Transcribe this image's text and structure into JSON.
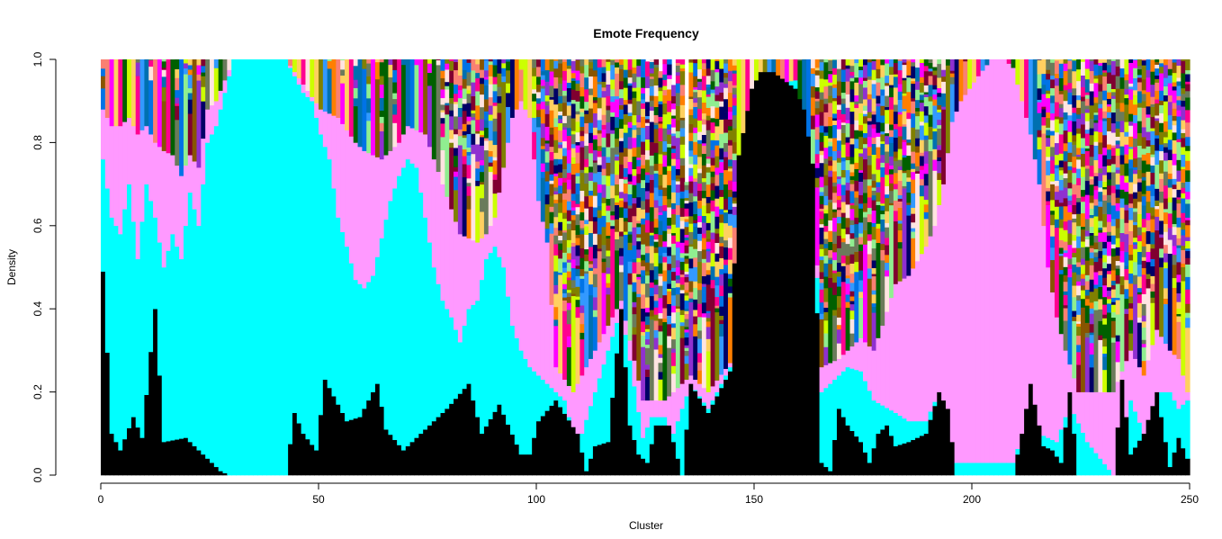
{
  "chart_data": {
    "type": "bar",
    "stacked": true,
    "title": "Emote Frequency",
    "xlabel": "Cluster",
    "ylabel": "Density",
    "xlim": [
      0,
      250
    ],
    "ylim": [
      0.0,
      1.0
    ],
    "x_ticks": [
      "0",
      "50",
      "100",
      "150",
      "200",
      "250"
    ],
    "y_ticks": [
      "0.0",
      "0.2",
      "0.4",
      "0.6",
      "0.8",
      "1.0"
    ],
    "grid": false,
    "legend": "none",
    "num_bars": 250,
    "series": [
      {
        "color": "#000000",
        "points": [
          [
            1,
            0.49
          ],
          [
            3,
            0.1
          ],
          [
            5,
            0.06
          ],
          [
            8,
            0.14
          ],
          [
            10,
            0.09
          ],
          [
            13,
            0.4
          ],
          [
            15,
            0.08
          ],
          [
            20,
            0.09
          ],
          [
            24,
            0.05
          ],
          [
            28,
            0.01
          ],
          [
            30,
            0.0
          ],
          [
            43,
            0.0
          ],
          [
            45,
            0.15
          ],
          [
            47,
            0.1
          ],
          [
            50,
            0.06
          ],
          [
            52,
            0.23
          ],
          [
            57,
            0.13
          ],
          [
            60,
            0.14
          ],
          [
            64,
            0.22
          ],
          [
            66,
            0.11
          ],
          [
            70,
            0.06
          ],
          [
            74,
            0.1
          ],
          [
            80,
            0.16
          ],
          [
            85,
            0.22
          ],
          [
            88,
            0.1
          ],
          [
            92,
            0.17
          ],
          [
            97,
            0.05
          ],
          [
            99,
            0.05
          ],
          [
            101,
            0.13
          ],
          [
            105,
            0.18
          ],
          [
            110,
            0.1
          ],
          [
            112,
            0.01
          ],
          [
            114,
            0.07
          ],
          [
            117,
            0.08
          ],
          [
            120,
            0.4
          ],
          [
            122,
            0.12
          ],
          [
            124,
            0.05
          ],
          [
            126,
            0.03
          ],
          [
            128,
            0.12
          ],
          [
            131,
            0.12
          ],
          [
            134,
            0.0
          ],
          [
            136,
            0.22
          ],
          [
            140,
            0.15
          ],
          [
            145,
            0.25
          ],
          [
            147,
            0.77
          ],
          [
            150,
            0.93
          ],
          [
            152,
            0.97
          ],
          [
            155,
            0.97
          ],
          [
            160,
            0.93
          ],
          [
            162,
            0.88
          ],
          [
            164,
            0.75
          ],
          [
            166,
            0.03
          ],
          [
            168,
            0.01
          ],
          [
            170,
            0.16
          ],
          [
            172,
            0.12
          ],
          [
            175,
            0.08
          ],
          [
            177,
            0.03
          ],
          [
            179,
            0.1
          ],
          [
            181,
            0.12
          ],
          [
            183,
            0.07
          ],
          [
            186,
            0.08
          ],
          [
            188,
            0.09
          ],
          [
            190,
            0.1
          ],
          [
            193,
            0.2
          ],
          [
            195,
            0.16
          ],
          [
            197,
            0.0
          ],
          [
            210,
            0.0
          ],
          [
            212,
            0.1
          ],
          [
            214,
            0.22
          ],
          [
            217,
            0.07
          ],
          [
            219,
            0.06
          ],
          [
            221,
            0.03
          ],
          [
            223,
            0.2
          ],
          [
            225,
            0.0
          ],
          [
            233,
            0.0
          ],
          [
            235,
            0.23
          ],
          [
            237,
            0.05
          ],
          [
            240,
            0.1
          ],
          [
            243,
            0.2
          ],
          [
            246,
            0.02
          ],
          [
            248,
            0.09
          ],
          [
            250,
            0.04
          ]
        ]
      },
      {
        "color": "#00FFFF",
        "points": [
          [
            1,
            0.76
          ],
          [
            3,
            0.62
          ],
          [
            5,
            0.58
          ],
          [
            7,
            0.7
          ],
          [
            9,
            0.52
          ],
          [
            11,
            0.7
          ],
          [
            13,
            0.62
          ],
          [
            15,
            0.5
          ],
          [
            17,
            0.58
          ],
          [
            19,
            0.52
          ],
          [
            21,
            0.68
          ],
          [
            23,
            0.6
          ],
          [
            25,
            0.8
          ],
          [
            27,
            0.84
          ],
          [
            29,
            0.92
          ],
          [
            31,
            1.0
          ],
          [
            43,
            1.0
          ],
          [
            45,
            0.96
          ],
          [
            47,
            0.92
          ],
          [
            49,
            0.9
          ],
          [
            51,
            0.82
          ],
          [
            53,
            0.76
          ],
          [
            55,
            0.62
          ],
          [
            57,
            0.55
          ],
          [
            59,
            0.47
          ],
          [
            61,
            0.45
          ],
          [
            63,
            0.48
          ],
          [
            65,
            0.57
          ],
          [
            67,
            0.66
          ],
          [
            69,
            0.72
          ],
          [
            71,
            0.76
          ],
          [
            73,
            0.74
          ],
          [
            75,
            0.62
          ],
          [
            77,
            0.5
          ],
          [
            79,
            0.42
          ],
          [
            81,
            0.38
          ],
          [
            83,
            0.32
          ],
          [
            85,
            0.4
          ],
          [
            87,
            0.42
          ],
          [
            89,
            0.52
          ],
          [
            91,
            0.55
          ],
          [
            93,
            0.5
          ],
          [
            95,
            0.36
          ],
          [
            97,
            0.3
          ],
          [
            99,
            0.26
          ],
          [
            101,
            0.24
          ],
          [
            103,
            0.22
          ],
          [
            105,
            0.2
          ],
          [
            107,
            0.18
          ],
          [
            109,
            0.1
          ],
          [
            111,
            0.1
          ],
          [
            120,
            0.4
          ],
          [
            125,
            0.09
          ],
          [
            127,
            0.14
          ],
          [
            130,
            0.14
          ],
          [
            132,
            0.1
          ],
          [
            136,
            0.22
          ],
          [
            140,
            0.16
          ],
          [
            145,
            0.26
          ],
          [
            150,
            0.93
          ],
          [
            160,
            0.95
          ],
          [
            164,
            0.75
          ],
          [
            166,
            0.2
          ],
          [
            170,
            0.24
          ],
          [
            172,
            0.26
          ],
          [
            175,
            0.25
          ],
          [
            178,
            0.18
          ],
          [
            183,
            0.15
          ],
          [
            186,
            0.13
          ],
          [
            190,
            0.13
          ],
          [
            193,
            0.2
          ],
          [
            196,
            0.03
          ],
          [
            210,
            0.03
          ],
          [
            213,
            0.13
          ],
          [
            216,
            0.1
          ],
          [
            220,
            0.08
          ],
          [
            223,
            0.17
          ],
          [
            227,
            0.08
          ],
          [
            233,
            0.0
          ],
          [
            237,
            0.18
          ],
          [
            240,
            0.1
          ],
          [
            243,
            0.2
          ],
          [
            246,
            0.2
          ],
          [
            248,
            0.16
          ],
          [
            250,
            0.18
          ]
        ]
      },
      {
        "color": "#FF99FF",
        "points": [
          [
            1,
            0.88
          ],
          [
            3,
            0.84
          ],
          [
            5,
            0.84
          ],
          [
            7,
            0.86
          ],
          [
            9,
            0.82
          ],
          [
            11,
            0.84
          ],
          [
            13,
            0.8
          ],
          [
            15,
            0.78
          ],
          [
            17,
            0.77
          ],
          [
            19,
            0.72
          ],
          [
            21,
            0.77
          ],
          [
            23,
            0.74
          ],
          [
            25,
            0.88
          ],
          [
            27,
            0.9
          ],
          [
            29,
            0.95
          ],
          [
            31,
            1.0
          ],
          [
            43,
            1.0
          ],
          [
            47,
            0.94
          ],
          [
            51,
            0.88
          ],
          [
            55,
            0.86
          ],
          [
            59,
            0.8
          ],
          [
            61,
            0.78
          ],
          [
            65,
            0.76
          ],
          [
            67,
            0.78
          ],
          [
            69,
            0.8
          ],
          [
            71,
            0.84
          ],
          [
            75,
            0.82
          ],
          [
            79,
            0.7
          ],
          [
            83,
            0.58
          ],
          [
            87,
            0.56
          ],
          [
            89,
            0.58
          ],
          [
            91,
            0.62
          ],
          [
            93,
            0.74
          ],
          [
            95,
            0.86
          ],
          [
            97,
            0.9
          ],
          [
            99,
            0.86
          ],
          [
            101,
            0.66
          ],
          [
            103,
            0.56
          ],
          [
            105,
            0.26
          ],
          [
            109,
            0.2
          ],
          [
            120,
            0.42
          ],
          [
            125,
            0.18
          ],
          [
            130,
            0.18
          ],
          [
            136,
            0.24
          ],
          [
            140,
            0.2
          ],
          [
            145,
            0.27
          ],
          [
            150,
            0.93
          ],
          [
            160,
            0.95
          ],
          [
            164,
            0.75
          ],
          [
            166,
            0.26
          ],
          [
            170,
            0.28
          ],
          [
            175,
            0.33
          ],
          [
            178,
            0.3
          ],
          [
            180,
            0.36
          ],
          [
            183,
            0.46
          ],
          [
            186,
            0.48
          ],
          [
            190,
            0.55
          ],
          [
            192,
            0.6
          ],
          [
            194,
            0.7
          ],
          [
            196,
            0.85
          ],
          [
            198,
            0.9
          ],
          [
            200,
            0.93
          ],
          [
            202,
            0.96
          ],
          [
            205,
            1.0
          ],
          [
            208,
            1.0
          ],
          [
            210,
            0.98
          ],
          [
            212,
            0.9
          ],
          [
            214,
            0.82
          ],
          [
            216,
            0.7
          ],
          [
            218,
            0.5
          ],
          [
            220,
            0.38
          ],
          [
            222,
            0.3
          ],
          [
            225,
            0.2
          ],
          [
            233,
            0.2
          ],
          [
            237,
            0.3
          ],
          [
            240,
            0.24
          ],
          [
            243,
            0.35
          ],
          [
            246,
            0.3
          ],
          [
            248,
            0.28
          ],
          [
            250,
            0.2
          ]
        ]
      }
    ],
    "other_series_colors": [
      "#006000",
      "#000066",
      "#0070B0",
      "#6B7B5B",
      "#FF7F00",
      "#0073E6",
      "#FFE4E1",
      "#FA8072",
      "#90EE90",
      "#CCFF00",
      "#FF00FF",
      "#800030",
      "#FFD060",
      "#885500",
      "#808000",
      "#FF0090",
      "#8F30D0",
      "#3399FF"
    ]
  }
}
